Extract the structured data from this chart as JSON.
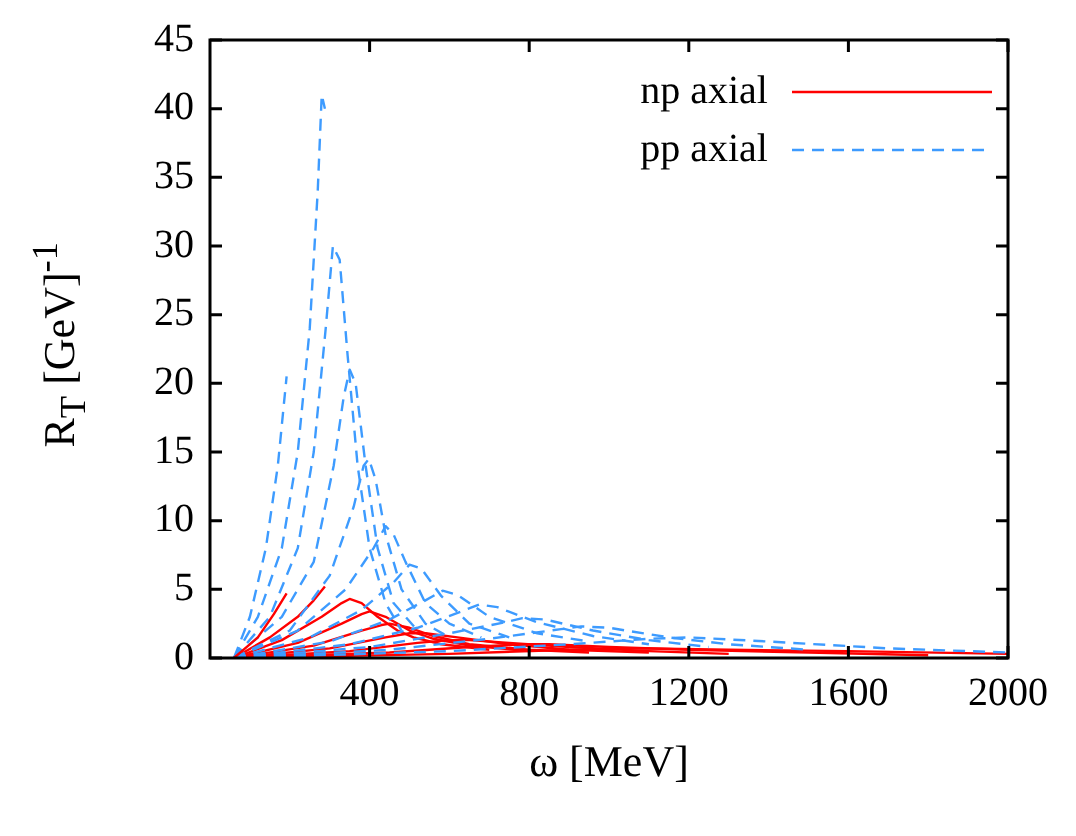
{
  "chart_data": {
    "type": "line",
    "xlabel": "ω [MeV]",
    "ylabel": "R$_{T}$ [GeV]$^{-1}$",
    "xlim": [
      0,
      2000
    ],
    "ylim": [
      0,
      45
    ],
    "xticks": [
      400,
      800,
      1200,
      1600,
      2000
    ],
    "yticks": [
      0,
      5,
      10,
      15,
      20,
      25,
      30,
      35,
      40,
      45
    ],
    "legend": "top right",
    "series": [
      {
        "name": "np axial",
        "color": "#ff0000",
        "line_style": "solid",
        "x": [
          60,
          120,
          160,
          192
        ],
        "values": [
          0,
          1.5,
          3.2,
          4.7
        ]
      },
      {
        "name": "pp axial",
        "color": "#3d9bff",
        "line_style": "dashed",
        "x": [
          60,
          100,
          140,
          170,
          192
        ],
        "values": [
          0,
          3,
          8,
          14,
          20.5
        ]
      },
      {
        "color": "#3d9bff",
        "line_style": "dashed",
        "x": [
          60,
          120,
          180,
          220,
          250,
          270,
          280,
          288
        ],
        "values": [
          0,
          3,
          8,
          15,
          24,
          34,
          41,
          40
        ]
      },
      {
        "color": "#3d9bff",
        "line_style": "dashed",
        "x": [
          60,
          150,
          220,
          260,
          290,
          308,
          325,
          345,
          370,
          400,
          440,
          480
        ],
        "values": [
          0,
          3,
          8,
          15,
          24,
          30,
          29,
          22,
          14,
          8,
          4,
          2
        ]
      },
      {
        "color": "#3d9bff",
        "line_style": "dashed",
        "x": [
          60,
          180,
          260,
          310,
          335,
          350,
          365,
          390,
          420,
          460,
          520
        ],
        "values": [
          0,
          3,
          7,
          14,
          19,
          21,
          20,
          14,
          8,
          4,
          2
        ]
      },
      {
        "color": "#3d9bff",
        "line_style": "dashed",
        "x": [
          60,
          200,
          300,
          360,
          385,
          398,
          415,
          440,
          480,
          540,
          600
        ],
        "values": [
          0,
          2,
          6,
          11,
          14,
          14.5,
          13,
          9,
          5,
          2.5,
          1.5
        ]
      },
      {
        "color": "#3d9bff",
        "line_style": "dashed",
        "x": [
          60,
          220,
          340,
          410,
          440,
          460,
          490,
          540,
          600,
          680
        ],
        "values": [
          0,
          2,
          5,
          8,
          9.6,
          9,
          7,
          4,
          2.5,
          1.5
        ]
      },
      {
        "color": "#3d9bff",
        "line_style": "dashed",
        "x": [
          60,
          250,
          380,
          460,
          500,
          530,
          580,
          650,
          750
        ],
        "values": [
          0,
          1.5,
          3.5,
          5.5,
          6.8,
          6.5,
          4.5,
          2.5,
          1.5
        ]
      },
      {
        "color": "#3d9bff",
        "line_style": "dashed",
        "x": [
          60,
          300,
          450,
          540,
          583,
          620,
          700,
          820,
          950
        ],
        "values": [
          0,
          1.2,
          2.8,
          4.2,
          4.9,
          4.6,
          3,
          1.8,
          1.2
        ]
      },
      {
        "color": "#3d9bff",
        "line_style": "dashed",
        "x": [
          60,
          350,
          520,
          640,
          675,
          720,
          820,
          960,
          1100
        ],
        "values": [
          0,
          1,
          2.2,
          3.5,
          3.9,
          3.7,
          2.6,
          1.6,
          1
        ]
      },
      {
        "color": "#3d9bff",
        "line_style": "dashed",
        "x": [
          60,
          400,
          600,
          740,
          783,
          840,
          960,
          1100,
          1250
        ],
        "values": [
          0,
          0.8,
          1.8,
          2.6,
          2.9,
          2.8,
          2,
          1.3,
          0.8
        ]
      },
      {
        "color": "#3d9bff",
        "line_style": "dashed",
        "x": [
          60,
          450,
          700,
          880,
          930,
          1000,
          1150,
          1300,
          1500
        ],
        "values": [
          0,
          0.6,
          1.4,
          2.1,
          2.3,
          2.2,
          1.5,
          1,
          0.6
        ]
      },
      {
        "color": "#3d9bff",
        "line_style": "dashed",
        "x": [
          60,
          600,
          900,
          1100,
          1200,
          1400,
          1700,
          2000
        ],
        "values": [
          0,
          0.5,
          1,
          1.4,
          1.5,
          1.2,
          0.7,
          0.4
        ]
      },
      {
        "color": "#ff0000",
        "line_style": "solid",
        "x": [
          60,
          150,
          220,
          260,
          288
        ],
        "values": [
          0,
          1.5,
          3,
          4.2,
          5.2
        ]
      },
      {
        "color": "#ff0000",
        "line_style": "solid",
        "x": [
          60,
          180,
          280,
          330,
          350,
          380,
          420,
          470,
          510,
          580,
          700
        ],
        "values": [
          0,
          1.3,
          3,
          4,
          4.3,
          4,
          3,
          2,
          1.5,
          1,
          0.6
        ]
      },
      {
        "color": "#ff0000",
        "line_style": "solid",
        "x": [
          60,
          220,
          330,
          380,
          400,
          440,
          500,
          560,
          650,
          800
        ],
        "values": [
          0,
          1.1,
          2.5,
          3.2,
          3.4,
          3,
          2,
          1.4,
          0.9,
          0.5
        ]
      },
      {
        "color": "#ff0000",
        "line_style": "solid",
        "x": [
          60,
          260,
          380,
          430,
          450,
          500,
          560,
          650,
          800,
          950
        ],
        "values": [
          0,
          0.9,
          2,
          2.4,
          2.5,
          2.2,
          1.6,
          1,
          0.6,
          0.4
        ]
      },
      {
        "color": "#ff0000",
        "line_style": "solid",
        "x": [
          60,
          300,
          440,
          500,
          540,
          620,
          750,
          900,
          1100
        ],
        "values": [
          0,
          0.7,
          1.5,
          1.8,
          1.8,
          1.5,
          1,
          0.6,
          0.4
        ]
      },
      {
        "color": "#ff0000",
        "line_style": "solid",
        "x": [
          60,
          350,
          520,
          600,
          650,
          750,
          900,
          1100,
          1300
        ],
        "values": [
          0,
          0.5,
          1.1,
          1.3,
          1.3,
          1.1,
          0.8,
          0.5,
          0.3
        ]
      },
      {
        "color": "#ff0000",
        "line_style": "solid",
        "x": [
          60,
          450,
          650,
          780,
          850,
          1000,
          1200,
          1500,
          1800
        ],
        "values": [
          0,
          0.4,
          0.8,
          1,
          1,
          0.8,
          0.6,
          0.4,
          0.2
        ]
      },
      {
        "color": "#ff0000",
        "line_style": "solid",
        "x": [
          60,
          600,
          900,
          1100,
          1300,
          1600,
          2000
        ],
        "values": [
          0,
          0.3,
          0.6,
          0.7,
          0.6,
          0.5,
          0.3
        ]
      }
    ]
  }
}
